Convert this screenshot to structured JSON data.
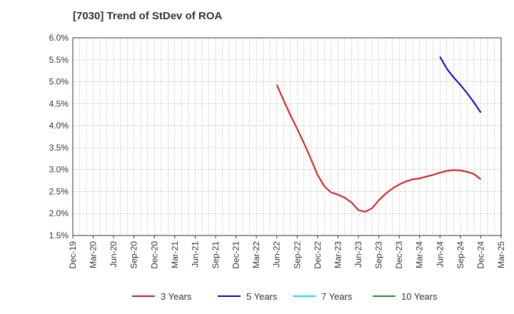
{
  "chart_data": {
    "type": "line",
    "title": "[7030]  Trend of StDev of ROA",
    "xlabel": "",
    "ylabel": "",
    "x_ticks": [
      "Dec-19",
      "Mar-20",
      "Jun-20",
      "Sep-20",
      "Dec-20",
      "Mar-21",
      "Jun-21",
      "Sep-21",
      "Dec-21",
      "Mar-22",
      "Jun-22",
      "Sep-22",
      "Dec-22",
      "Mar-23",
      "Jun-23",
      "Sep-23",
      "Dec-23",
      "Mar-24",
      "Jun-24",
      "Sep-24",
      "Dec-24",
      "Mar-25"
    ],
    "y_ticks": [
      "1.5%",
      "2.0%",
      "2.5%",
      "3.0%",
      "3.5%",
      "4.0%",
      "4.5%",
      "5.0%",
      "5.5%",
      "6.0%"
    ],
    "ylim": [
      1.5,
      6.0
    ],
    "grid": true,
    "legend_position": "bottom",
    "series": [
      {
        "name": "3 Years",
        "color": "#dd1111",
        "points": [
          [
            "Jun-22",
            4.93
          ],
          [
            "Jul-22",
            4.58
          ],
          [
            "Aug-22",
            4.24
          ],
          [
            "Sep-22",
            3.93
          ],
          [
            "Oct-22",
            3.6
          ],
          [
            "Nov-22",
            3.25
          ],
          [
            "Dec-22",
            2.88
          ],
          [
            "Jan-23",
            2.62
          ],
          [
            "Feb-23",
            2.48
          ],
          [
            "Mar-23",
            2.43
          ],
          [
            "Apr-23",
            2.36
          ],
          [
            "May-23",
            2.25
          ],
          [
            "Jun-23",
            2.08
          ],
          [
            "Jul-23",
            2.04
          ],
          [
            "Aug-23",
            2.12
          ],
          [
            "Sep-23",
            2.3
          ],
          [
            "Oct-23",
            2.45
          ],
          [
            "Nov-23",
            2.57
          ],
          [
            "Dec-23",
            2.66
          ],
          [
            "Jan-24",
            2.73
          ],
          [
            "Feb-24",
            2.78
          ],
          [
            "Mar-24",
            2.8
          ],
          [
            "Apr-24",
            2.84
          ],
          [
            "May-24",
            2.88
          ],
          [
            "Jun-24",
            2.93
          ],
          [
            "Jul-24",
            2.97
          ],
          [
            "Aug-24",
            2.99
          ],
          [
            "Sep-24",
            2.98
          ],
          [
            "Oct-24",
            2.95
          ],
          [
            "Nov-24",
            2.9
          ],
          [
            "Dec-24",
            2.78
          ]
        ]
      },
      {
        "name": "5 Years",
        "color": "#0000cc",
        "points": [
          [
            "Jun-24",
            5.57
          ],
          [
            "Jul-24",
            5.3
          ],
          [
            "Aug-24",
            5.1
          ],
          [
            "Sep-24",
            4.93
          ],
          [
            "Oct-24",
            4.74
          ],
          [
            "Nov-24",
            4.53
          ],
          [
            "Dec-24",
            4.3
          ]
        ]
      },
      {
        "name": "7 Years",
        "color": "#00e5ee",
        "points": []
      },
      {
        "name": "10 Years",
        "color": "#228b22",
        "points": []
      }
    ]
  }
}
